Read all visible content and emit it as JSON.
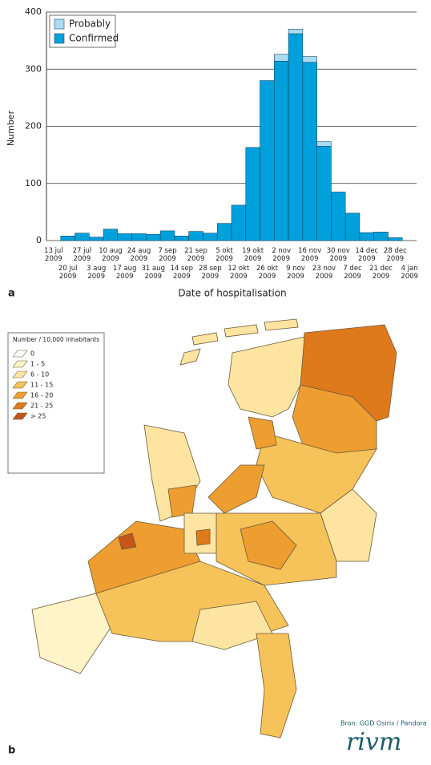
{
  "chart_data": {
    "type": "bar",
    "stacked": true,
    "ylabel": "Number",
    "xlabel": "Date of hospitalisation",
    "categories": [
      "13 jul 2009",
      "20 jul 2009",
      "27 jul 2009",
      "3 aug 2009",
      "10 aug 2009",
      "17 aug 2009",
      "24 aug 2009",
      "31 aug 2009",
      "7 sep 2009",
      "14 sep 2009",
      "21 sep 2009",
      "28 sep 2009",
      "5 okt 2009",
      "12 okt 2009",
      "19 okt 2009",
      "26 okt 2009",
      "2 nov 2009",
      "9 nov 2009",
      "16 nov 2009",
      "23 nov 2009",
      "30 nov 2009",
      "7 dec 2009",
      "14 dec 2009",
      "21 dec 2009",
      "28 dec 2009",
      "4 jan 2009"
    ],
    "series": [
      {
        "name": "Confirmed",
        "color": "#00a0dc",
        "values": [
          null,
          8,
          13,
          6,
          20,
          12,
          12,
          11,
          17,
          8,
          16,
          13,
          30,
          62,
          163,
          280,
          314,
          362,
          312,
          165,
          85,
          48,
          14,
          15,
          5,
          null
        ]
      },
      {
        "name": "Probably",
        "color": "#a9dcf2",
        "values": [
          null,
          0,
          0,
          0,
          0,
          0,
          0,
          0,
          0,
          0,
          0,
          0,
          0,
          0,
          0,
          0,
          12,
          8,
          10,
          8,
          0,
          0,
          0,
          0,
          0,
          null
        ]
      }
    ],
    "ylim": [
      0,
      400
    ],
    "yticks": [
      0,
      100,
      200,
      300,
      400
    ],
    "grid": true,
    "legend": "upper left",
    "panel_label": "a"
  },
  "map": {
    "panel_label": "b",
    "legend_title": "Number / 10,000 inhabitants",
    "legend_items": [
      {
        "label": "0",
        "color": "#ffffff"
      },
      {
        "label": "1 - 5",
        "color": "#fff3c8"
      },
      {
        "label": "6 - 10",
        "color": "#fde4a0"
      },
      {
        "label": "11 - 15",
        "color": "#f6c25a"
      },
      {
        "label": "16 - 20",
        "color": "#ee9e30"
      },
      {
        "label": "21 - 25",
        "color": "#df7a1c"
      },
      {
        "label": "> 25",
        "color": "#c4561a"
      }
    ],
    "source": "Bron: GGD Osiris / Pandora",
    "logo": "rivm"
  }
}
